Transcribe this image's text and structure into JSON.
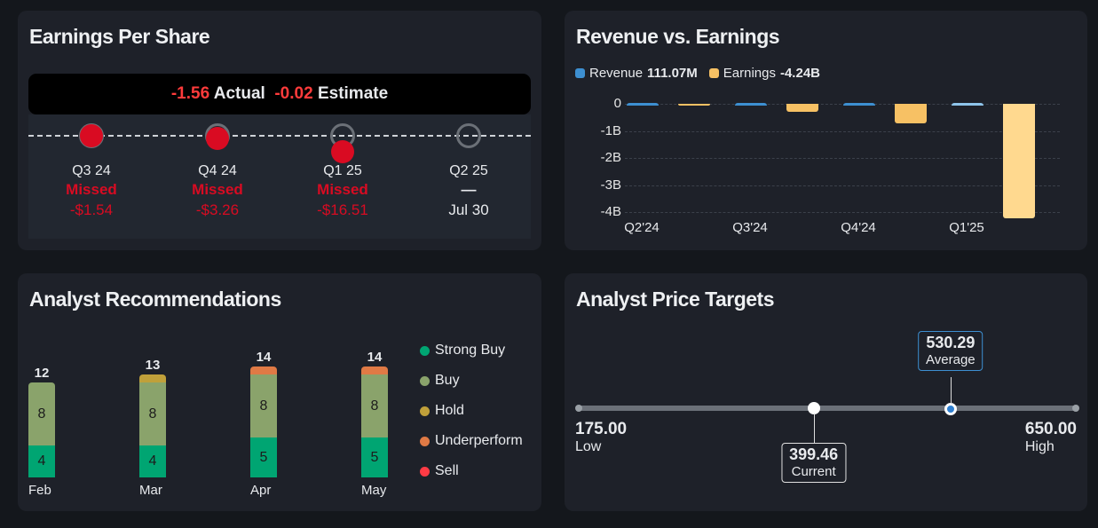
{
  "eps": {
    "title": "Earnings Per Share",
    "actual_value": "-1.56",
    "actual_label": "Actual",
    "estimate_value": "-0.02",
    "estimate_label": "Estimate",
    "quarters": [
      {
        "label": "Q3 24",
        "status": "Missed",
        "value": "-$1.54",
        "pos": 0
      },
      {
        "label": "Q4 24",
        "status": "Missed",
        "value": "-$3.26",
        "pos": 0.1
      },
      {
        "label": "Q1 25",
        "status": "Missed",
        "value": "-$16.51",
        "pos": 0.6
      },
      {
        "label": "Q2 25",
        "status": "—",
        "value": "Jul 30",
        "pos": null
      }
    ]
  },
  "rev": {
    "title": "Revenue vs. Earnings",
    "revenue_label": "Revenue",
    "revenue_value": "111.07M",
    "earnings_label": "Earnings",
    "earnings_value": "-4.24B"
  },
  "recs": {
    "title": "Analyst Recommendations"
  },
  "pt": {
    "title": "Analyst Price Targets",
    "low": 175.0,
    "high": 650.0,
    "current": 399.46,
    "average": 530.29,
    "low_text": "175.00",
    "low_label": "Low",
    "high_text": "650.00",
    "high_label": "High",
    "current_text": "399.46",
    "current_label": "Current",
    "average_text": "530.29",
    "average_label": "Average"
  },
  "chart_data": [
    {
      "type": "bar",
      "title": "Revenue vs. Earnings",
      "categories": [
        "Q2'24",
        "Q3'24",
        "Q4'24",
        "Q1'25"
      ],
      "yticks": [
        "0",
        "-1B",
        "-2B",
        "-3B",
        "-4B"
      ],
      "ylim": [
        -4.2,
        0.1
      ],
      "series": [
        {
          "name": "Revenue",
          "color": "#3d8fd1",
          "values": [
            0.11,
            0.11,
            0.11,
            0.111
          ]
        },
        {
          "name": "Earnings",
          "color": "#f7c164",
          "values": [
            -0.08,
            -0.3,
            -0.72,
            -4.24
          ]
        }
      ]
    },
    {
      "type": "bar",
      "stacked": true,
      "title": "Analyst Recommendations",
      "categories": [
        "Feb",
        "Mar",
        "Apr",
        "May"
      ],
      "totals": [
        12,
        13,
        14,
        14
      ],
      "series": [
        {
          "name": "Strong Buy",
          "color": "#00a572",
          "values": [
            4,
            4,
            5,
            5
          ]
        },
        {
          "name": "Buy",
          "color": "#8aa36b",
          "values": [
            8,
            8,
            8,
            8
          ]
        },
        {
          "name": "Hold",
          "color": "#c0a03a",
          "values": [
            0,
            1,
            0,
            0
          ]
        },
        {
          "name": "Underperform",
          "color": "#e07a45",
          "values": [
            0,
            0,
            1,
            1
          ]
        },
        {
          "name": "Sell",
          "color": "#ff3b45",
          "values": [
            0,
            0,
            0,
            0
          ]
        }
      ]
    }
  ]
}
